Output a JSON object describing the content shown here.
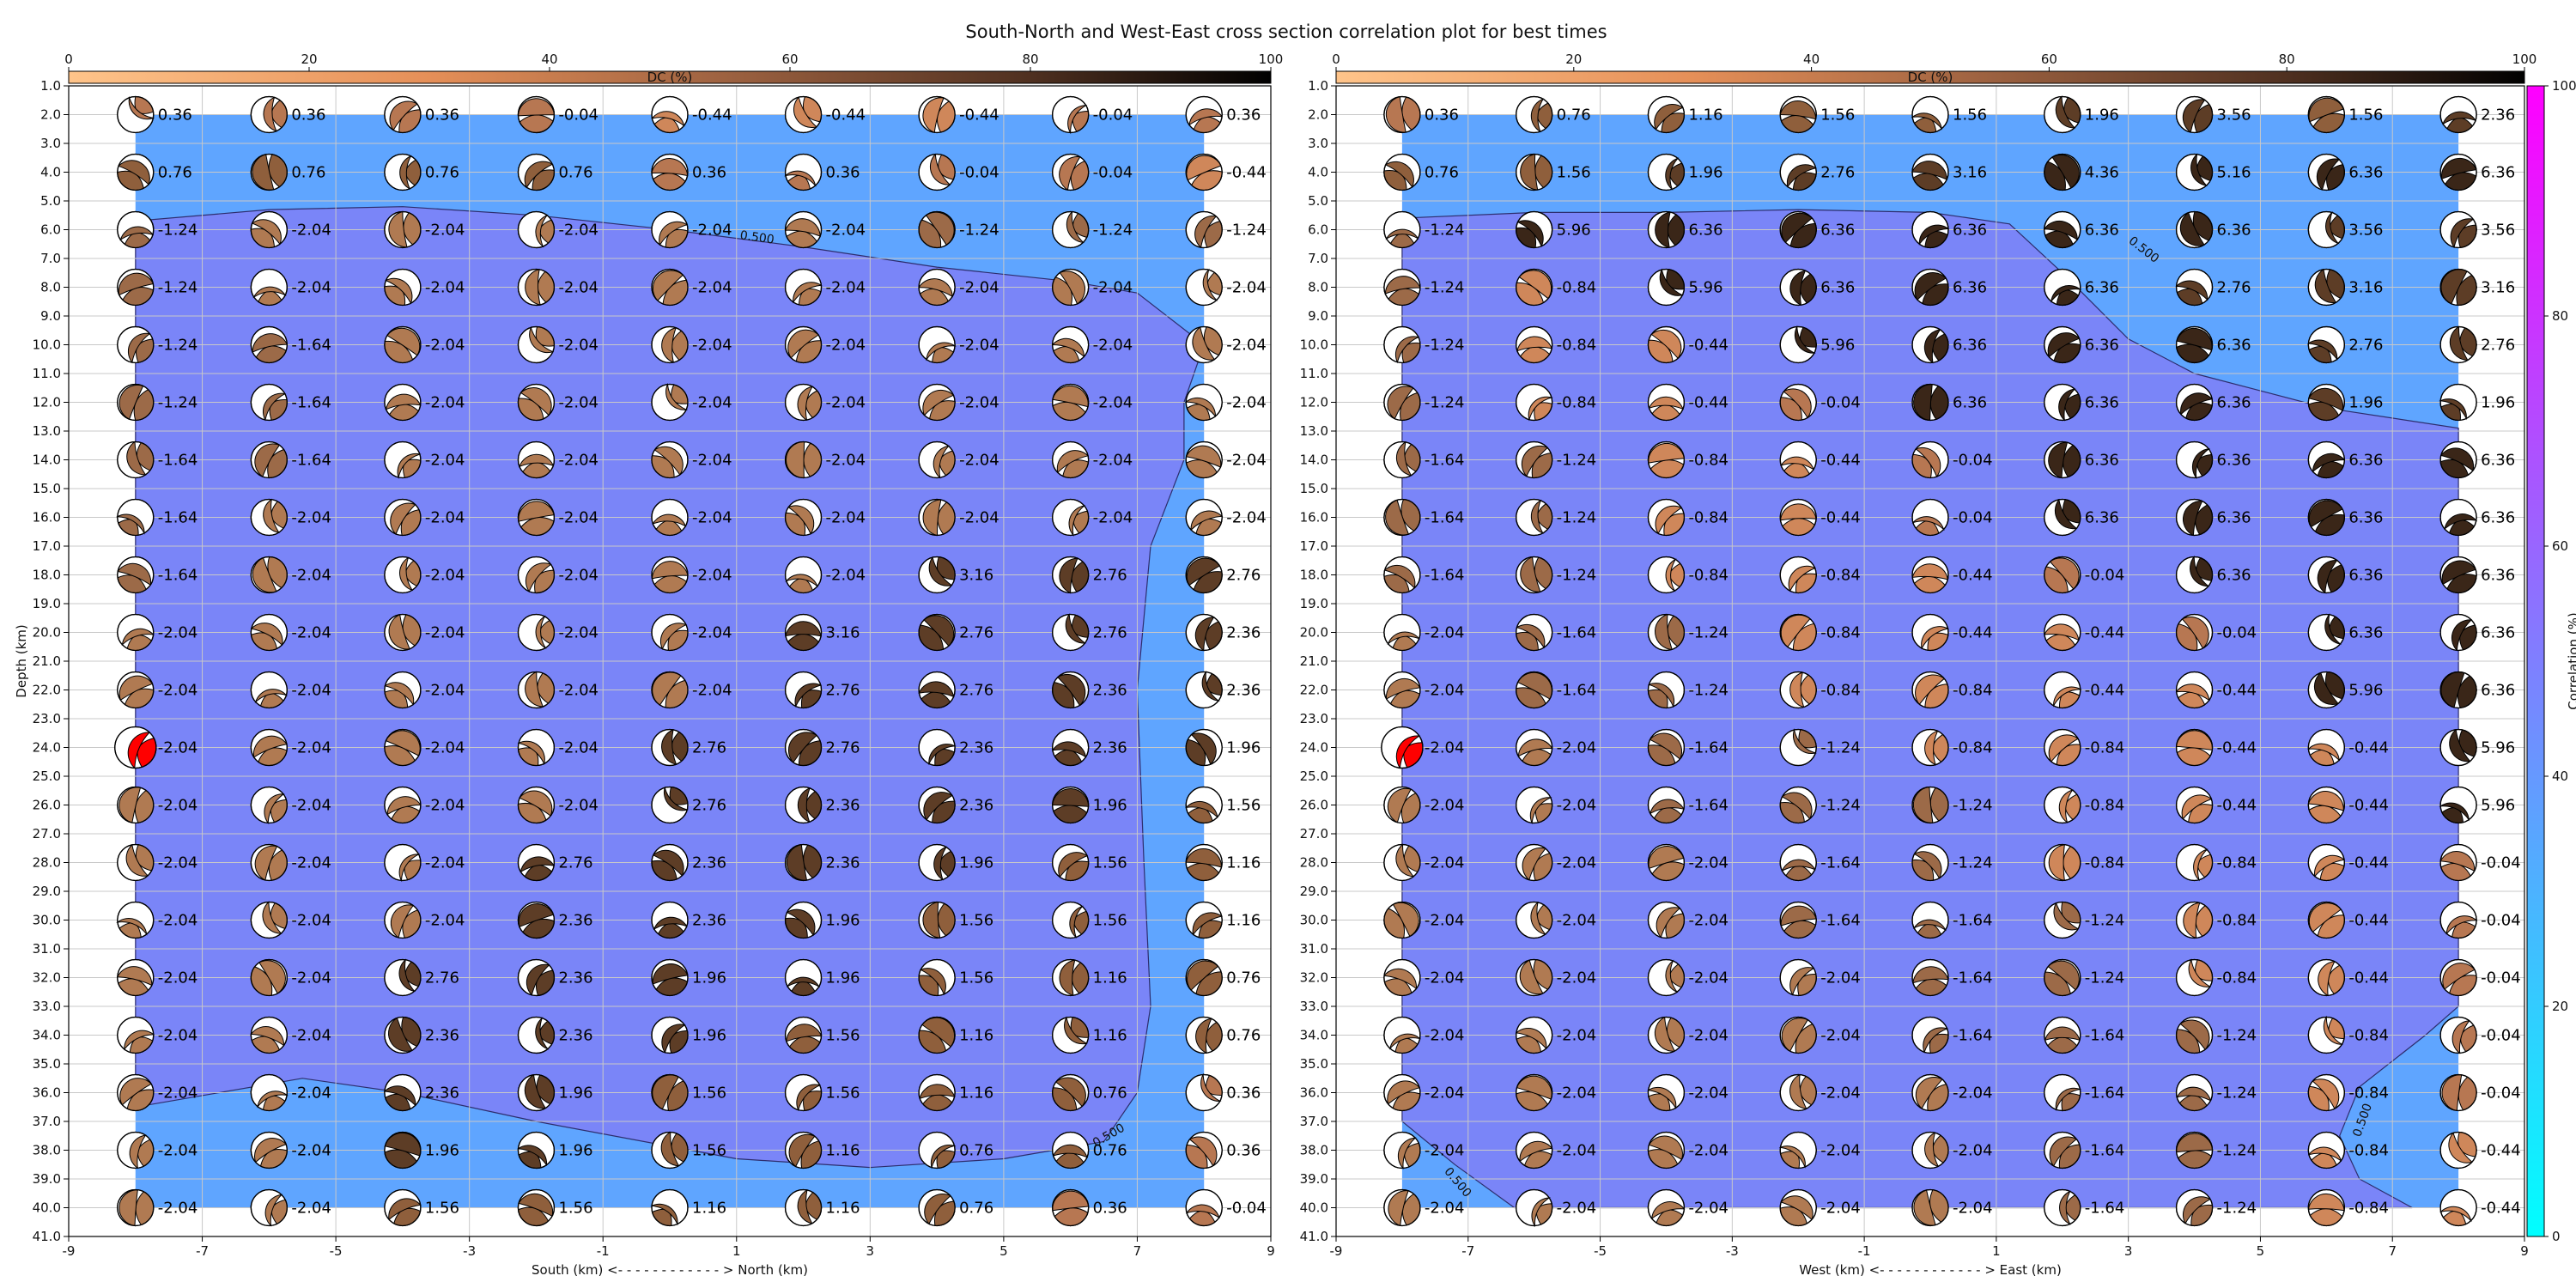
{
  "title": "South-North and West-East cross section correlation plot for best times",
  "dc_colorbar": {
    "label": "DC (%)",
    "ticks": [
      "0",
      "20",
      "40",
      "60",
      "80",
      "100"
    ],
    "range": [
      0,
      100
    ]
  },
  "corr_colorbar": {
    "label": "Correlation (%)",
    "ticks": [
      "0",
      "20",
      "40",
      "60",
      "80",
      "100"
    ],
    "range": [
      0,
      100
    ]
  },
  "colors": {
    "low": "#5fa5ff",
    "mid": "#7a85f8",
    "high": "#8f56ee",
    "marker": "#ff0000",
    "dc_low": "#ffae6f",
    "dc_mid": "#a0643f",
    "dc_high": "#000000"
  },
  "chart_data": [
    {
      "type": "heatmap",
      "xlabel": "South (km) <- - - - - - - - - - - - > North (km)",
      "ylabel": "Depth (km)",
      "xlim": [
        -9,
        9
      ],
      "ylim": [
        41,
        1
      ],
      "xticks": [
        "-9",
        "-7",
        "-5",
        "-3",
        "-1",
        "1",
        "3",
        "5",
        "7",
        "9"
      ],
      "x": [
        -8,
        -6,
        -4,
        -2,
        0,
        2,
        4,
        6,
        8
      ],
      "depths": [
        2,
        4,
        6,
        8,
        10,
        12,
        14,
        16,
        18,
        20,
        22,
        24,
        26,
        28,
        30,
        32,
        34,
        36,
        38,
        40
      ],
      "contour_label": "0.500",
      "best_solution": {
        "x": -8,
        "depth": 24
      },
      "labels": [
        [
          "0.36",
          "0.36",
          "0.36",
          "-0.04",
          "-0.44",
          "-0.44",
          "-0.44",
          "-0.04",
          "0.36"
        ],
        [
          "0.76",
          "0.76",
          "0.76",
          "0.76",
          "0.36",
          "0.36",
          "-0.04",
          "-0.04",
          "-0.44"
        ],
        [
          "-1.24",
          "-2.04",
          "-2.04",
          "-2.04",
          "-2.04",
          "-2.04",
          "-1.24",
          "-1.24",
          "-1.24"
        ],
        [
          "-1.24",
          "-2.04",
          "-2.04",
          "-2.04",
          "-2.04",
          "-2.04",
          "-2.04",
          "-2.04",
          "-2.04"
        ],
        [
          "-1.24",
          "-1.64",
          "-2.04",
          "-2.04",
          "-2.04",
          "-2.04",
          "-2.04",
          "-2.04",
          "-2.04"
        ],
        [
          "-1.24",
          "-1.64",
          "-2.04",
          "-2.04",
          "-2.04",
          "-2.04",
          "-2.04",
          "-2.04",
          "-2.04"
        ],
        [
          "-1.64",
          "-1.64",
          "-2.04",
          "-2.04",
          "-2.04",
          "-2.04",
          "-2.04",
          "-2.04",
          "-2.04"
        ],
        [
          "-1.64",
          "-2.04",
          "-2.04",
          "-2.04",
          "-2.04",
          "-2.04",
          "-2.04",
          "-2.04",
          "-2.04"
        ],
        [
          "-1.64",
          "-2.04",
          "-2.04",
          "-2.04",
          "-2.04",
          "-2.04",
          "3.16",
          "2.76",
          "2.76"
        ],
        [
          "-2.04",
          "-2.04",
          "-2.04",
          "-2.04",
          "-2.04",
          "3.16",
          "2.76",
          "2.76",
          "2.36"
        ],
        [
          "-2.04",
          "-2.04",
          "-2.04",
          "-2.04",
          "-2.04",
          "2.76",
          "2.76",
          "2.36",
          "2.36"
        ],
        [
          "-2.04",
          "-2.04",
          "-2.04",
          "-2.04",
          "2.76",
          "2.76",
          "2.36",
          "2.36",
          "1.96"
        ],
        [
          "-2.04",
          "-2.04",
          "-2.04",
          "-2.04",
          "2.76",
          "2.36",
          "2.36",
          "1.96",
          "1.56"
        ],
        [
          "-2.04",
          "-2.04",
          "-2.04",
          "2.76",
          "2.36",
          "2.36",
          "1.96",
          "1.56",
          "1.16"
        ],
        [
          "-2.04",
          "-2.04",
          "-2.04",
          "2.36",
          "2.36",
          "1.96",
          "1.56",
          "1.56",
          "1.16"
        ],
        [
          "-2.04",
          "-2.04",
          "2.76",
          "2.36",
          "1.96",
          "1.96",
          "1.56",
          "1.16",
          "0.76"
        ],
        [
          "-2.04",
          "-2.04",
          "2.36",
          "2.36",
          "1.96",
          "1.56",
          "1.16",
          "1.16",
          "0.76"
        ],
        [
          "-2.04",
          "-2.04",
          "2.36",
          "1.96",
          "1.56",
          "1.56",
          "1.16",
          "0.76",
          "0.36"
        ],
        [
          "-2.04",
          "-2.04",
          "1.96",
          "1.96",
          "1.56",
          "1.16",
          "0.76",
          "0.76",
          "0.36"
        ],
        [
          "-2.04",
          "-2.04",
          "1.56",
          "1.56",
          "1.16",
          "1.16",
          "0.76",
          "0.36",
          "-0.04"
        ]
      ]
    },
    {
      "type": "heatmap",
      "xlabel": "West (km) <- - - - - - - - - - - - > East (km)",
      "ylabel": "",
      "xlim": [
        -9,
        9
      ],
      "ylim": [
        41,
        1
      ],
      "xticks": [
        "-9",
        "-7",
        "-5",
        "-3",
        "-1",
        "1",
        "3",
        "5",
        "7",
        "9"
      ],
      "x": [
        -8,
        -6,
        -4,
        -2,
        0,
        2,
        4,
        6,
        8
      ],
      "depths": [
        2,
        4,
        6,
        8,
        10,
        12,
        14,
        16,
        18,
        20,
        22,
        24,
        26,
        28,
        30,
        32,
        34,
        36,
        38,
        40
      ],
      "contour_label": "0.500",
      "best_solution": {
        "x": -8,
        "depth": 24
      },
      "labels": [
        [
          "0.36",
          "0.76",
          "1.16",
          "1.56",
          "1.56",
          "1.96",
          "3.56",
          "1.56",
          "2.36"
        ],
        [
          "0.76",
          "1.56",
          "1.96",
          "2.76",
          "3.16",
          "4.36",
          "5.16",
          "6.36",
          "6.36"
        ],
        [
          "-1.24",
          "5.96",
          "6.36",
          "6.36",
          "6.36",
          "6.36",
          "6.36",
          "3.56",
          "3.56"
        ],
        [
          "-1.24",
          "-0.84",
          "5.96",
          "6.36",
          "6.36",
          "6.36",
          "2.76",
          "3.16",
          "3.16"
        ],
        [
          "-1.24",
          "-0.84",
          "-0.44",
          "5.96",
          "6.36",
          "6.36",
          "6.36",
          "2.76",
          "2.76"
        ],
        [
          "-1.24",
          "-0.84",
          "-0.44",
          "-0.04",
          "6.36",
          "6.36",
          "6.36",
          "1.96",
          "1.96"
        ],
        [
          "-1.64",
          "-1.24",
          "-0.84",
          "-0.44",
          "-0.04",
          "6.36",
          "6.36",
          "6.36",
          "6.36"
        ],
        [
          "-1.64",
          "-1.24",
          "-0.84",
          "-0.44",
          "-0.04",
          "6.36",
          "6.36",
          "6.36",
          "6.36"
        ],
        [
          "-1.64",
          "-1.24",
          "-0.84",
          "-0.84",
          "-0.44",
          "-0.04",
          "6.36",
          "6.36",
          "6.36"
        ],
        [
          "-2.04",
          "-1.64",
          "-1.24",
          "-0.84",
          "-0.44",
          "-0.44",
          "-0.04",
          "6.36",
          "6.36"
        ],
        [
          "-2.04",
          "-1.64",
          "-1.24",
          "-0.84",
          "-0.84",
          "-0.44",
          "-0.44",
          "5.96",
          "6.36"
        ],
        [
          "-2.04",
          "-2.04",
          "-1.64",
          "-1.24",
          "-0.84",
          "-0.84",
          "-0.44",
          "-0.44",
          "5.96"
        ],
        [
          "-2.04",
          "-2.04",
          "-1.64",
          "-1.24",
          "-1.24",
          "-0.84",
          "-0.44",
          "-0.44",
          "5.96"
        ],
        [
          "-2.04",
          "-2.04",
          "-2.04",
          "-1.64",
          "-1.24",
          "-0.84",
          "-0.84",
          "-0.44",
          "-0.04"
        ],
        [
          "-2.04",
          "-2.04",
          "-2.04",
          "-1.64",
          "-1.64",
          "-1.24",
          "-0.84",
          "-0.44",
          "-0.04"
        ],
        [
          "-2.04",
          "-2.04",
          "-2.04",
          "-2.04",
          "-1.64",
          "-1.24",
          "-0.84",
          "-0.44",
          "-0.04"
        ],
        [
          "-2.04",
          "-2.04",
          "-2.04",
          "-2.04",
          "-1.64",
          "-1.64",
          "-1.24",
          "-0.84",
          "-0.04"
        ],
        [
          "-2.04",
          "-2.04",
          "-2.04",
          "-2.04",
          "-2.04",
          "-1.64",
          "-1.24",
          "-0.84",
          "-0.04"
        ],
        [
          "-2.04",
          "-2.04",
          "-2.04",
          "-2.04",
          "-2.04",
          "-1.64",
          "-1.24",
          "-0.84",
          "-0.44"
        ],
        [
          "-2.04",
          "-2.04",
          "-2.04",
          "-2.04",
          "-2.04",
          "-1.64",
          "-1.24",
          "-0.84",
          "-0.44"
        ]
      ]
    }
  ]
}
